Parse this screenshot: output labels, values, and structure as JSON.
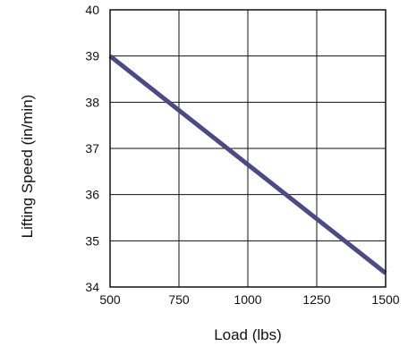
{
  "chart_data": {
    "type": "line",
    "xlabel": "Load (lbs)",
    "ylabel": "Lifting Speed (in/min)",
    "xlim": [
      500,
      1500
    ],
    "ylim": [
      34,
      40
    ],
    "x_ticks": [
      500,
      750,
      1000,
      1250,
      1500
    ],
    "y_ticks": [
      34,
      35,
      36,
      37,
      38,
      39,
      40
    ],
    "grid": true,
    "series": [
      {
        "color": "#4b4a86",
        "x": [
          500,
          1500
        ],
        "y": [
          39.0,
          34.3
        ]
      }
    ]
  }
}
